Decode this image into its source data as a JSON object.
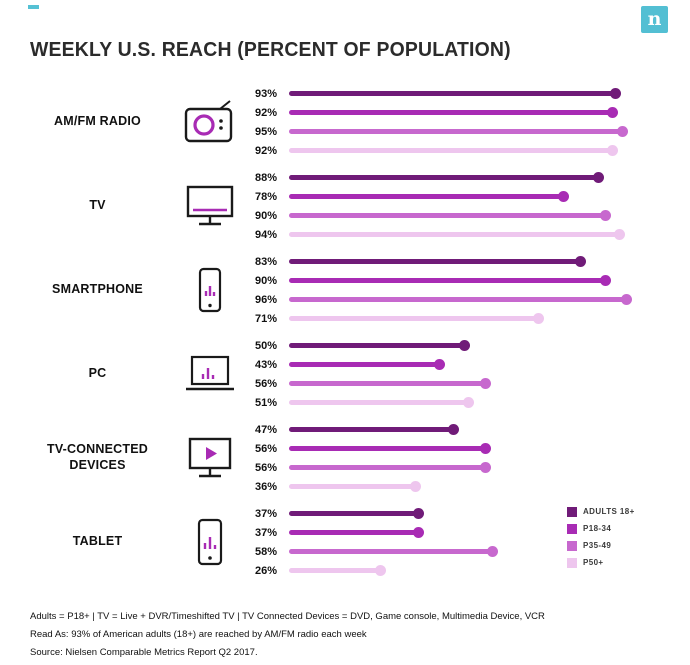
{
  "header": {
    "logo_text": "n",
    "logo_color": "#53bfd3"
  },
  "chart_data": {
    "type": "bar",
    "variant": "horizontal-lollipop",
    "title": "WEEKLY U.S. REACH (PERCENT OF POPULATION)",
    "unit": "percent",
    "xlim": [
      0,
      100
    ],
    "grid": false,
    "legend_position": "bottom-right",
    "series": [
      {
        "name": "ADULTS 18+",
        "color": "#701b78"
      },
      {
        "name": "P18-34",
        "color": "#a82bb4"
      },
      {
        "name": "P35-49",
        "color": "#c768ce"
      },
      {
        "name": "P50+",
        "color": "#eec6ee"
      }
    ],
    "groups": [
      {
        "label": "AM/FM RADIO",
        "icon": "radio-icon",
        "values": [
          93,
          92,
          95,
          92
        ]
      },
      {
        "label": "TV",
        "icon": "tv-icon",
        "values": [
          88,
          78,
          90,
          94
        ]
      },
      {
        "label": "SMARTPHONE",
        "icon": "smartphone-icon",
        "values": [
          83,
          90,
          96,
          71
        ]
      },
      {
        "label": "PC",
        "icon": "laptop-icon",
        "values": [
          50,
          43,
          56,
          51
        ]
      },
      {
        "label": "TV-CONNECTED DEVICES",
        "icon": "tv-play-icon",
        "values": [
          47,
          56,
          56,
          36
        ]
      },
      {
        "label": "TABLET",
        "icon": "tablet-icon",
        "values": [
          37,
          37,
          58,
          26
        ]
      }
    ]
  },
  "footer": {
    "lines": [
      "Adults = P18+ | TV = Live + DVR/Timeshifted TV | TV Connected Devices = DVD, Game console, Multimedia Device, VCR",
      "Read As: 93% of American adults (18+) are reached by AM/FM radio each week",
      "Source: Nielsen Comparable Metrics Report Q2 2017."
    ]
  }
}
